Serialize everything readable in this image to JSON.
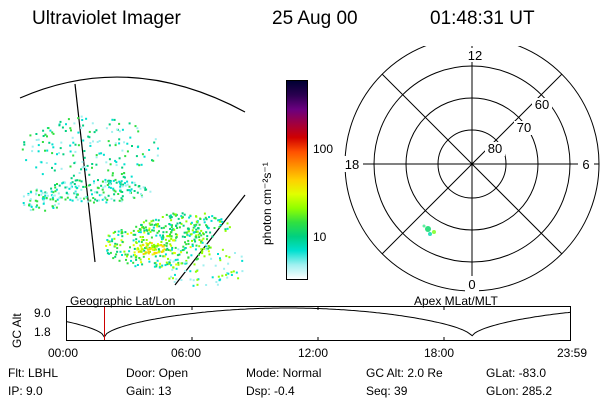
{
  "header": {
    "title": "Ultraviolet Imager",
    "date": "25 Aug 00",
    "time": "01:48:31 UT"
  },
  "colorbar": {
    "unit_label": "photon cm⁻²s⁻¹",
    "tick_labels": [
      "100",
      "10"
    ],
    "scale": "log",
    "colors": [
      "#000033",
      "#2a0050",
      "#6a0080",
      "#a00040",
      "#d00000",
      "#ff5000",
      "#ff9000",
      "#ffd000",
      "#e0ff00",
      "#90ff00",
      "#30e040",
      "#00d080",
      "#00e0d0",
      "#a0f0f0",
      "#ffffff"
    ]
  },
  "left_panel": {
    "label": "Geographic Lat/Lon"
  },
  "right_panel": {
    "label": "Apex MLat/MLT",
    "mlt_labels": [
      "12",
      "18",
      "6",
      "0"
    ],
    "lat_labels": [
      "60",
      "70",
      "80"
    ]
  },
  "altitude_plot": {
    "ylabel": "GC Alt",
    "y_ticks": [
      "9.0",
      "1.8"
    ],
    "x_ticks": [
      "00:00",
      "06:00",
      "12:00",
      "18:00",
      "23:59"
    ],
    "current_marker_hour": 1.81
  },
  "info": {
    "row1": [
      {
        "text": "Flt: LBHL"
      },
      {
        "text": "Door: Open"
      },
      {
        "text": "Mode: Normal"
      },
      {
        "text": "GC Alt: 2.0 Re"
      },
      {
        "text": "GLat: -83.0"
      }
    ],
    "row2": [
      {
        "text": "IP:  9.0"
      },
      {
        "text": "Gain: 13"
      },
      {
        "text": "Dsp:    -0.4"
      },
      {
        "text": "Seq: 39"
      },
      {
        "text": "GLon: 285.2"
      }
    ]
  }
}
